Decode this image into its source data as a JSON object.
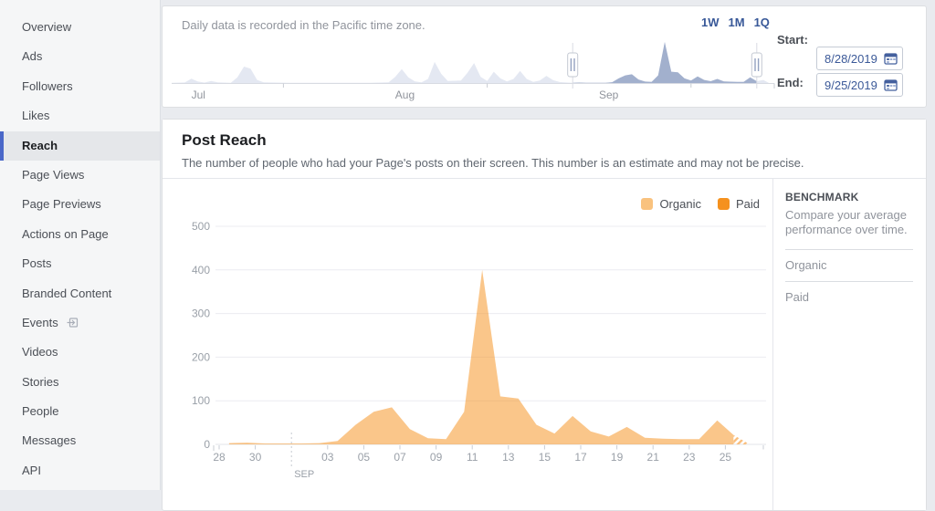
{
  "sidebar": {
    "items": [
      {
        "label": "Overview"
      },
      {
        "label": "Ads"
      },
      {
        "label": "Followers"
      },
      {
        "label": "Likes"
      },
      {
        "label": "Reach",
        "active": true
      },
      {
        "label": "Page Views"
      },
      {
        "label": "Page Previews"
      },
      {
        "label": "Actions on Page"
      },
      {
        "label": "Posts"
      },
      {
        "label": "Branded Content"
      },
      {
        "label": "Events",
        "icon": "external-link"
      },
      {
        "label": "Videos"
      },
      {
        "label": "Stories"
      },
      {
        "label": "People"
      },
      {
        "label": "Messages"
      },
      {
        "label": "API"
      }
    ]
  },
  "timeline_panel": {
    "note": "Daily data is recorded in the Pacific time zone.",
    "range_shortcuts": [
      "1W",
      "1M",
      "1Q"
    ],
    "start_label": "Start:",
    "end_label": "End:",
    "start_date": "8/28/2019",
    "end_date": "9/25/2019"
  },
  "post_reach": {
    "title": "Post Reach",
    "description": "The number of people who had your Page's posts on their screen. This number is an estimate and may not be precise.",
    "legend": [
      {
        "label": "Organic",
        "color": "#F9C27E"
      },
      {
        "label": "Paid",
        "color": "#F5911E"
      }
    ]
  },
  "benchmark": {
    "title": "BENCHMARK",
    "description": "Compare your average performance over time.",
    "rows": [
      "Organic",
      "Paid"
    ]
  },
  "chart_data": [
    {
      "type": "area",
      "title": "Post Reach",
      "ylim": [
        0,
        500
      ],
      "yticks": [
        0,
        100,
        200,
        300,
        400,
        500
      ],
      "grid": "horizontal",
      "legend_position": "top-right",
      "dates": [
        "8/28",
        "8/29",
        "8/30",
        "8/31",
        "9/1",
        "9/2",
        "9/3",
        "9/4",
        "9/5",
        "9/6",
        "9/7",
        "9/8",
        "9/9",
        "9/10",
        "9/11",
        "9/12",
        "9/13",
        "9/14",
        "9/15",
        "9/16",
        "9/17",
        "9/18",
        "9/19",
        "9/20",
        "9/21",
        "9/22",
        "9/23",
        "9/24",
        "9/25"
      ],
      "x_ticks": [
        {
          "label": "28",
          "day": 0
        },
        {
          "label": "30",
          "day": 2
        },
        {
          "label": "03",
          "day": 6
        },
        {
          "label": "05",
          "day": 8
        },
        {
          "label": "07",
          "day": 10
        },
        {
          "label": "09",
          "day": 12
        },
        {
          "label": "11",
          "day": 14
        },
        {
          "label": "13",
          "day": 16
        },
        {
          "label": "15",
          "day": 18
        },
        {
          "label": "17",
          "day": 20
        },
        {
          "label": "19",
          "day": 22
        },
        {
          "label": "21",
          "day": 24
        },
        {
          "label": "23",
          "day": 26
        },
        {
          "label": "25",
          "day": 28
        }
      ],
      "month_marker": {
        "label": "SEP",
        "day": 4
      },
      "series": [
        {
          "name": "Organic",
          "color": "#F6921E",
          "fill": "rgba(246,146,30,0.52)",
          "values": [
            3,
            4,
            2,
            2,
            2,
            3,
            8,
            45,
            75,
            85,
            35,
            14,
            12,
            75,
            400,
            110,
            105,
            45,
            25,
            65,
            30,
            18,
            40,
            15,
            13,
            12,
            12,
            55,
            18
          ]
        },
        {
          "name": "Paid",
          "color": "#F5911E",
          "values": [
            0,
            0,
            0,
            0,
            0,
            0,
            0,
            0,
            0,
            0,
            0,
            0,
            0,
            0,
            0,
            0,
            0,
            0,
            0,
            0,
            0,
            0,
            0,
            0,
            0,
            0,
            0,
            0,
            0
          ]
        }
      ],
      "incomplete_last_day": true
    },
    {
      "type": "area",
      "title": "Date range overview",
      "months": [
        {
          "label": "Jul",
          "day": 3
        },
        {
          "label": "Aug",
          "day": 34
        },
        {
          "label": "Sep",
          "day": 65
        }
      ],
      "mid_month_tick_days": [
        17,
        48,
        79
      ],
      "day0": "Jun 28",
      "total_days": 91,
      "selected_range": {
        "start_day": 61,
        "end_day": 89,
        "start": "8/28/2019",
        "end": "9/25/2019"
      },
      "pre_points": [
        [
          0,
          2
        ],
        [
          2,
          5
        ],
        [
          3,
          42
        ],
        [
          4,
          14
        ],
        [
          5,
          4
        ],
        [
          6,
          20
        ],
        [
          7,
          6
        ],
        [
          9,
          3
        ],
        [
          10,
          55
        ],
        [
          11,
          160
        ],
        [
          12,
          140
        ],
        [
          13,
          30
        ],
        [
          14,
          6
        ],
        [
          18,
          2
        ],
        [
          24,
          2
        ],
        [
          30,
          3
        ],
        [
          33,
          6
        ],
        [
          34,
          60
        ],
        [
          35,
          135
        ],
        [
          36,
          55
        ],
        [
          37,
          16
        ],
        [
          38,
          6
        ],
        [
          39,
          40
        ],
        [
          40,
          205
        ],
        [
          41,
          90
        ],
        [
          42,
          20
        ],
        [
          44,
          25
        ],
        [
          45,
          100
        ],
        [
          46,
          195
        ],
        [
          47,
          60
        ],
        [
          48,
          20
        ],
        [
          49,
          110
        ],
        [
          50,
          45
        ],
        [
          51,
          15
        ],
        [
          52,
          40
        ],
        [
          53,
          118
        ],
        [
          54,
          40
        ],
        [
          55,
          12
        ],
        [
          56,
          25
        ],
        [
          57,
          70
        ],
        [
          58,
          28
        ],
        [
          59,
          10
        ],
        [
          60,
          5
        ]
      ],
      "selected_values_source": "chart_data[0].series[0].values",
      "tail_points": [
        [
          90,
          30
        ],
        [
          90.8,
          3
        ]
      ],
      "colors": {
        "unselected": "#E4E8F2",
        "selected": "#A2B0CD"
      }
    }
  ]
}
